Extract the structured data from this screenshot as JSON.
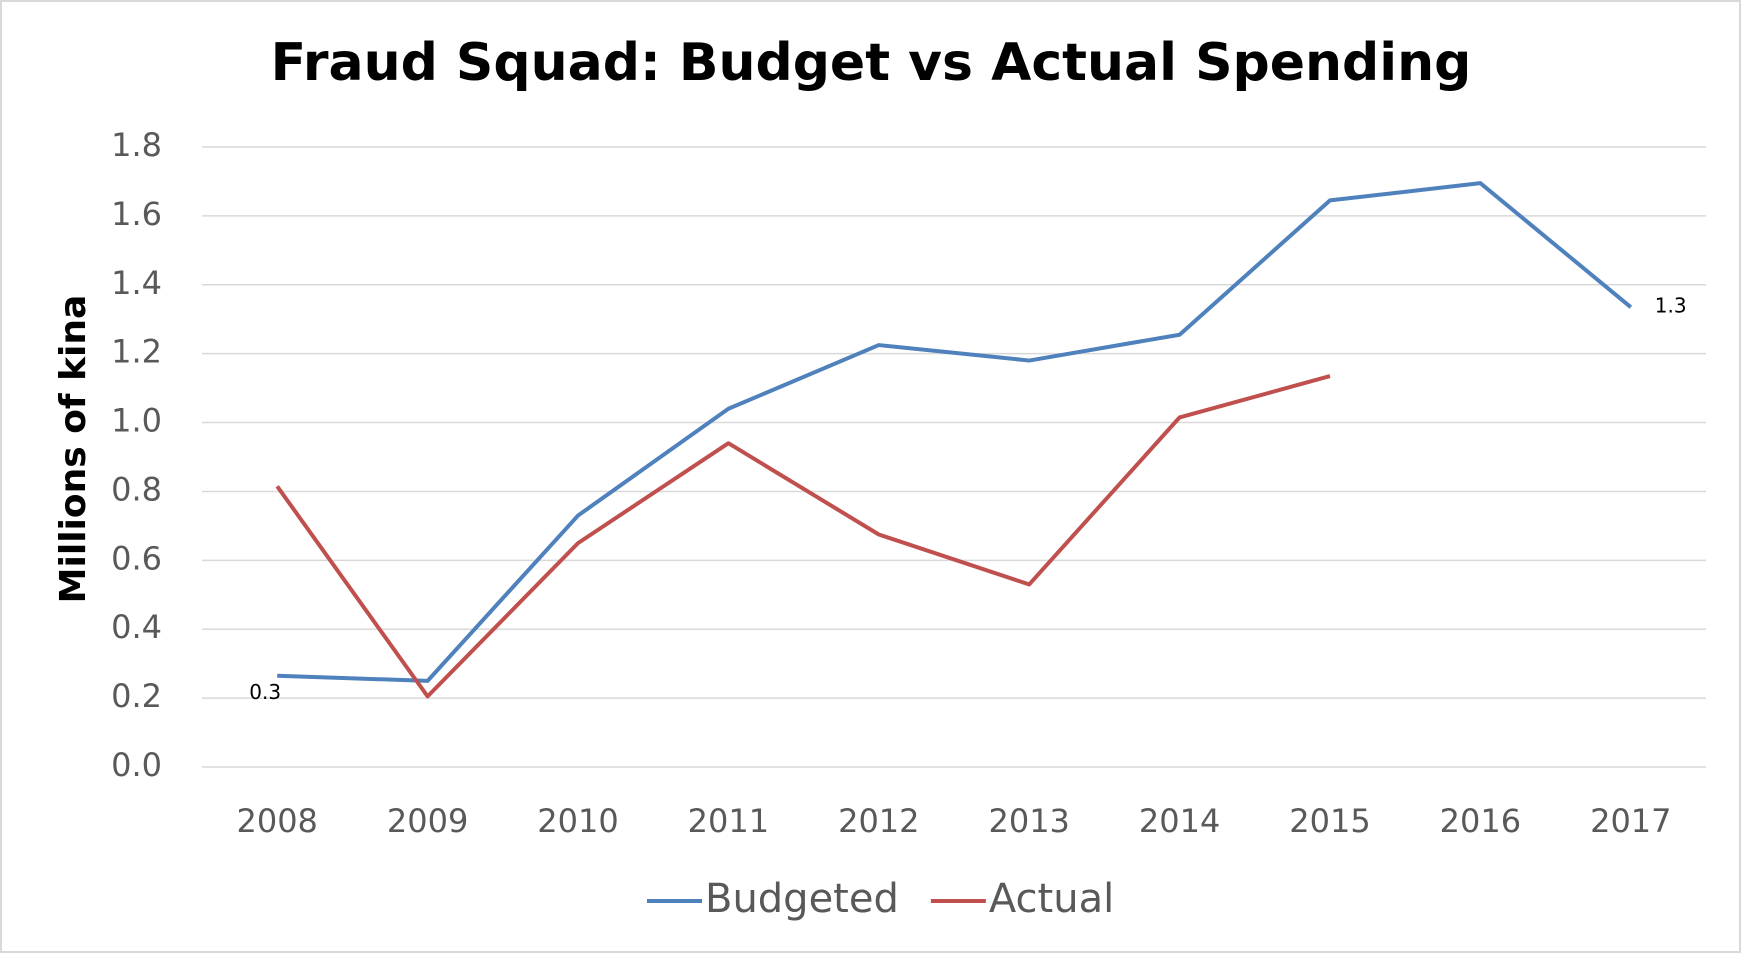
{
  "chart_data": {
    "type": "line",
    "title": "Fraud Squad: Budget vs Actual Spending",
    "y_label": "Millions of kina",
    "categories": [
      "2008",
      "2009",
      "2010",
      "2011",
      "2012",
      "2013",
      "2014",
      "2015",
      "2016",
      "2017"
    ],
    "series": [
      {
        "name": "Budgeted",
        "color": "#4f81bd",
        "values": [
          0.265,
          0.25,
          0.73,
          1.04,
          1.225,
          1.18,
          1.255,
          1.645,
          1.695,
          1.335
        ],
        "value_labels": [
          "0.3",
          null,
          null,
          null,
          null,
          null,
          null,
          null,
          null,
          "1.3"
        ]
      },
      {
        "name": "Actual",
        "color": "#c0504d",
        "values": [
          0.815,
          0.205,
          0.65,
          0.94,
          0.675,
          0.53,
          1.015,
          1.135,
          null,
          null
        ]
      }
    ],
    "ylim": [
      0,
      1.8
    ],
    "yticks": [
      {
        "value": 0,
        "label": "0.0"
      },
      0.2,
      0.4,
      0.6,
      0.8,
      {
        "value": 1,
        "label": "1.0"
      },
      1.2,
      1.4,
      1.6,
      1.8
    ],
    "grid": true,
    "legend": "bottom"
  }
}
